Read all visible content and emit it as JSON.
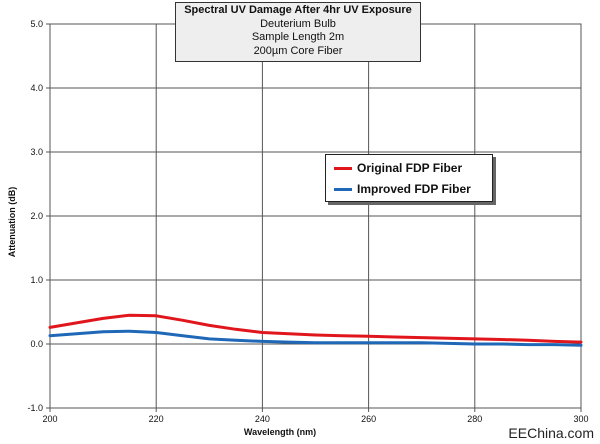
{
  "chart_data": {
    "type": "line",
    "title": "Spectral UV Damage After 4hr UV Exposure",
    "subtitle_lines": [
      "Deuterium Bulb",
      "Sample Length 2m",
      "200µm Core Fiber"
    ],
    "xlabel": "Wavelength (nm)",
    "ylabel": "Attenuation  (dB)",
    "xlim": [
      200,
      300
    ],
    "ylim": [
      -1.0,
      5.0
    ],
    "x_ticks": [
      "200",
      "220",
      "240",
      "260",
      "280",
      "300"
    ],
    "y_ticks": [
      "-1.0",
      "0.0",
      "1.0",
      "2.0",
      "3.0",
      "4.0",
      "5.0"
    ],
    "grid": true,
    "legend_position": "center-right",
    "series": [
      {
        "name": "Original FDP Fiber",
        "color": "#e0161c",
        "x": [
          200,
          205,
          210,
          215,
          220,
          225,
          230,
          235,
          240,
          245,
          250,
          255,
          260,
          265,
          270,
          275,
          280,
          285,
          290,
          295,
          300
        ],
        "y": [
          0.26,
          0.33,
          0.4,
          0.45,
          0.44,
          0.37,
          0.29,
          0.23,
          0.18,
          0.16,
          0.14,
          0.13,
          0.12,
          0.11,
          0.1,
          0.09,
          0.08,
          0.07,
          0.06,
          0.04,
          0.03
        ]
      },
      {
        "name": "Improved FDP Fiber",
        "color": "#1f68b8",
        "x": [
          200,
          205,
          210,
          215,
          220,
          225,
          230,
          235,
          240,
          245,
          250,
          255,
          260,
          265,
          270,
          275,
          280,
          285,
          290,
          295,
          300
        ],
        "y": [
          0.13,
          0.16,
          0.19,
          0.2,
          0.18,
          0.13,
          0.08,
          0.06,
          0.04,
          0.03,
          0.02,
          0.02,
          0.02,
          0.02,
          0.02,
          0.01,
          0.0,
          0.0,
          -0.01,
          -0.01,
          -0.02
        ]
      }
    ]
  },
  "watermark": "EEChina.com"
}
